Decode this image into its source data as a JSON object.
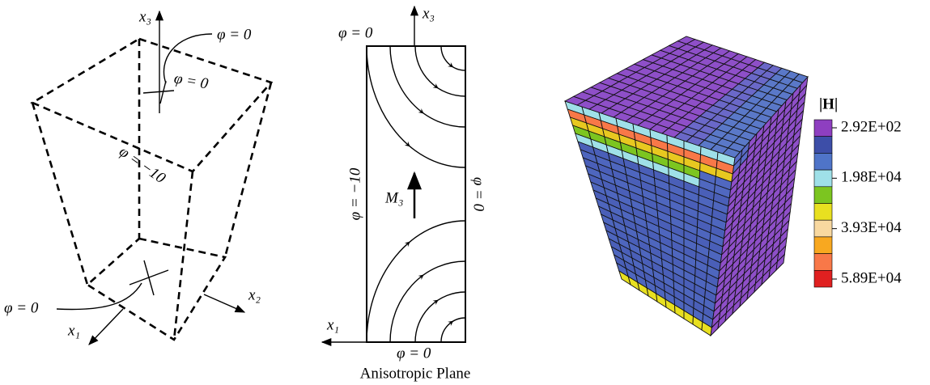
{
  "panel_1": {
    "x3": "x₃",
    "phi_top": "φ = 0",
    "phi_inner": "φ = 0",
    "phi_side": "φ = −10",
    "phi_bottom": "φ = 0",
    "x1": "x₁",
    "x2": "x₂"
  },
  "panel_2": {
    "x3": "x₃",
    "phi_top": "φ = 0",
    "phi_left": "φ = −10",
    "phi_right": "φ = 0",
    "m3": "M₃",
    "x1": "x₁",
    "phi_bottom": "φ = 0",
    "caption": "Anisotropic Plane"
  },
  "panel_3": {
    "legend_title": "|H|",
    "legend_labels": [
      "2.92E+02",
      "1.98E+04",
      "3.93E+04",
      "5.89E+04"
    ]
  }
}
